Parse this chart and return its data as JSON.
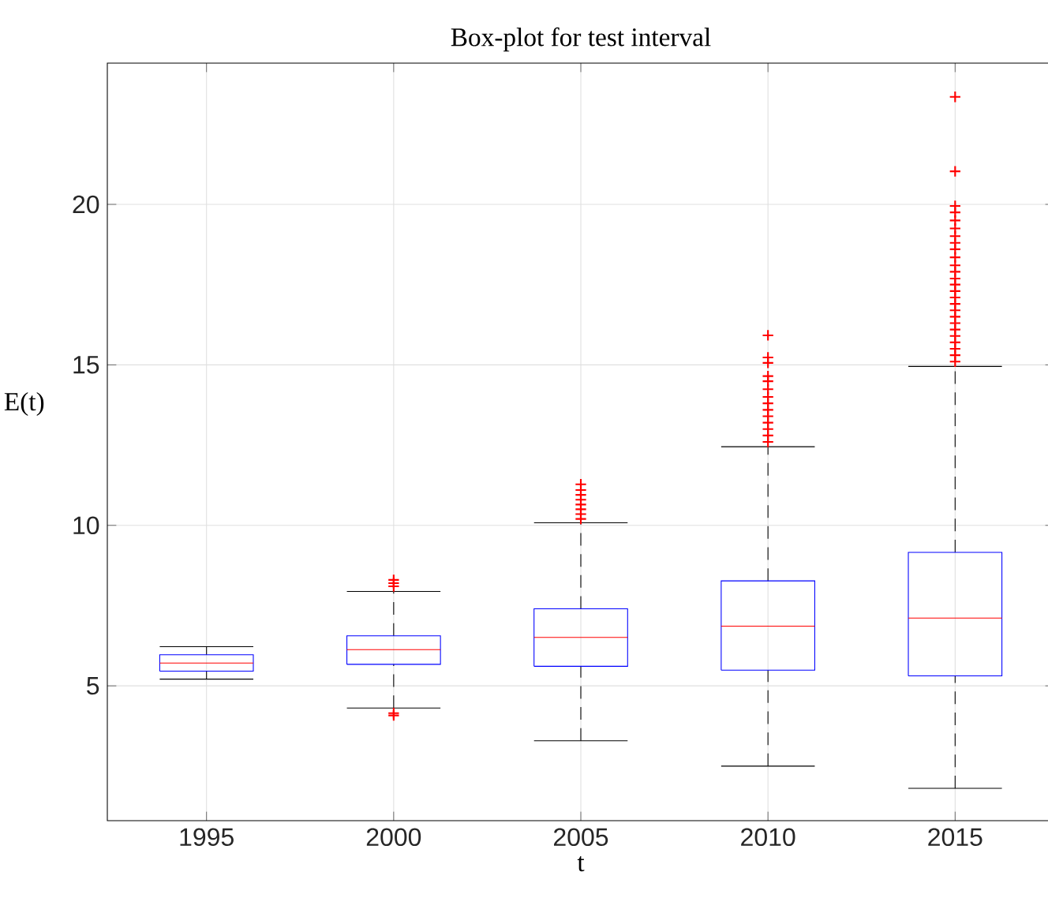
{
  "chart_data": {
    "type": "box",
    "title": "Box-plot for test interval",
    "xlabel": "t",
    "ylabel": "E(t)",
    "categories": [
      "1995",
      "2000",
      "2005",
      "2010",
      "2015"
    ],
    "boxes": [
      {
        "low": 5.21,
        "q1": 5.46,
        "median": 5.71,
        "q3": 5.97,
        "high": 6.22
      },
      {
        "low": 4.31,
        "q1": 5.67,
        "median": 6.13,
        "q3": 6.56,
        "high": 7.94,
        "outliers": [
          8.1,
          8.2,
          8.3,
          4.15,
          4.08
        ]
      },
      {
        "low": 3.29,
        "q1": 5.61,
        "median": 6.51,
        "q3": 7.4,
        "high": 10.08,
        "outliers": [
          10.2,
          10.35,
          10.5,
          10.65,
          10.8,
          10.95,
          11.1,
          11.28
        ]
      },
      {
        "low": 2.5,
        "q1": 5.49,
        "median": 6.86,
        "q3": 8.27,
        "high": 12.45,
        "outliers": [
          12.6,
          12.8,
          13.0,
          13.2,
          13.4,
          13.6,
          13.8,
          14.0,
          14.24,
          14.49,
          14.65,
          15.06,
          15.23,
          15.92
        ]
      },
      {
        "low": 1.81,
        "q1": 5.31,
        "median": 7.11,
        "q3": 9.16,
        "high": 14.95,
        "outliers": [
          15.1,
          15.3,
          15.5,
          15.7,
          15.9,
          16.1,
          16.3,
          16.5,
          16.7,
          16.9,
          17.1,
          17.3,
          17.5,
          17.69,
          17.9,
          18.1,
          18.35,
          18.6,
          18.8,
          19.01,
          19.25,
          19.5,
          19.75,
          19.95,
          21.03,
          23.35
        ]
      }
    ],
    "ylim": [
      0.8,
      24.4
    ],
    "yticks": [
      5,
      10,
      15,
      20
    ],
    "grid": true,
    "marker": "cross"
  }
}
